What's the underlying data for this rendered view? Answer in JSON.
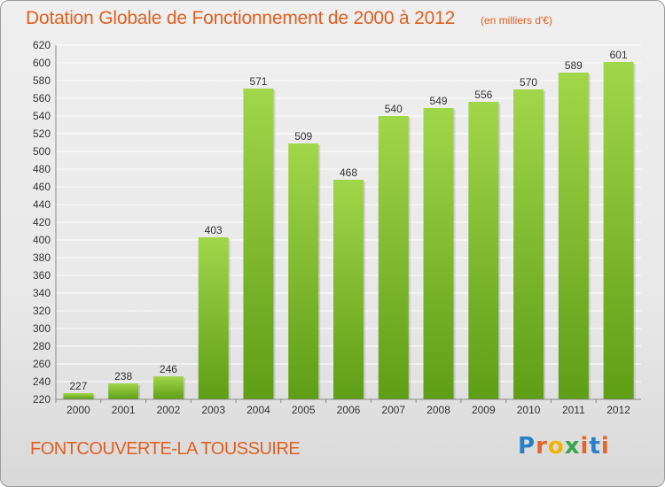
{
  "header": {
    "title": "Dotation Globale de Fonctionnement de 2000 à 2012",
    "unit_note": "(en milliers d'€)"
  },
  "footer": {
    "commune": "FONTCOUVERTE-LA TOUSSUIRE",
    "logo_text": "Proxiti"
  },
  "colors": {
    "title": "#e06020",
    "bar_light": "#a2d64a",
    "bar_dark": "#5e9e16",
    "grid": "#ffffff"
  },
  "chart_data": {
    "type": "bar",
    "title": "Dotation Globale de Fonctionnement de 2000 à 2012",
    "subtitle": "(en milliers d'€)",
    "xlabel": "",
    "ylabel": "",
    "categories": [
      "2000",
      "2001",
      "2002",
      "2003",
      "2004",
      "2005",
      "2006",
      "2007",
      "2008",
      "2009",
      "2010",
      "2011",
      "2012"
    ],
    "values": [
      227,
      238,
      246,
      403,
      571,
      509,
      468,
      540,
      549,
      556,
      570,
      589,
      601
    ],
    "ylim": [
      220,
      620
    ],
    "ytick_step": 20,
    "grid": true,
    "data_labels": true
  }
}
